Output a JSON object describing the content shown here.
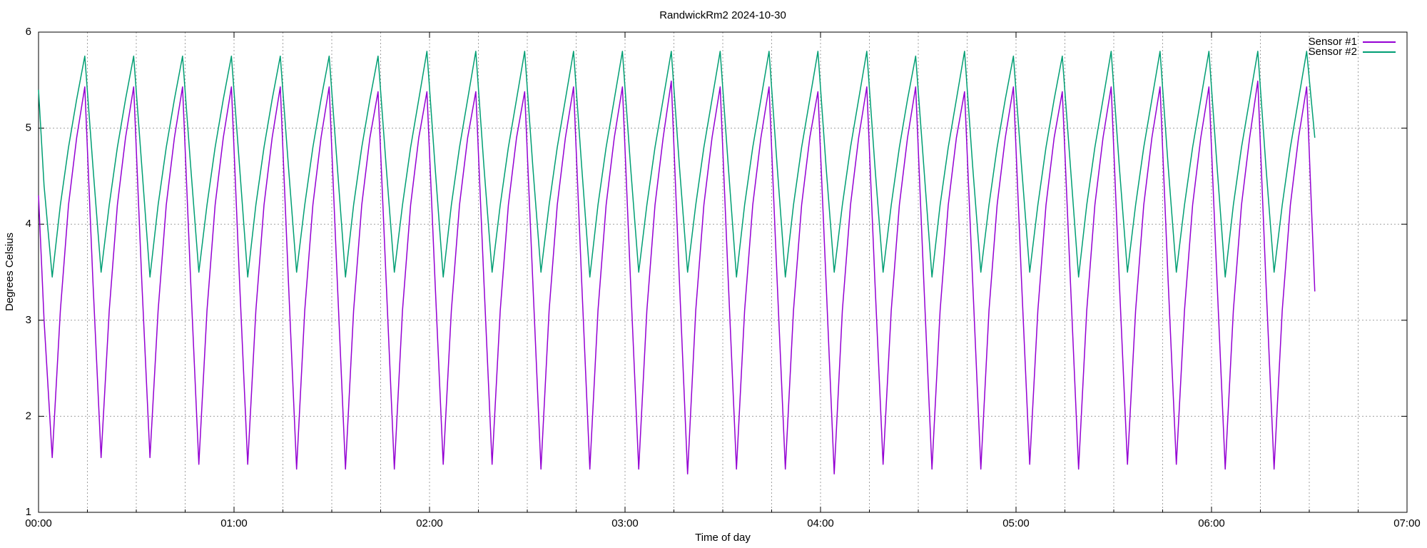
{
  "chart_data": {
    "type": "line",
    "title": "RandwickRm2 2024-10-30",
    "x_label": "Time of day",
    "y_label": "Degrees Celsius",
    "xlim": [
      0,
      420
    ],
    "ylim": [
      1,
      6
    ],
    "xticks": [
      {
        "value": 0,
        "label": "00:00"
      },
      {
        "value": 60,
        "label": "01:00"
      },
      {
        "value": 120,
        "label": "02:00"
      },
      {
        "value": 180,
        "label": "03:00"
      },
      {
        "value": 240,
        "label": "04:00"
      },
      {
        "value": 300,
        "label": "05:00"
      },
      {
        "value": 360,
        "label": "06:00"
      },
      {
        "value": 420,
        "label": "07:00"
      }
    ],
    "yticks": [
      1,
      2,
      3,
      4,
      5,
      6
    ],
    "grid": true,
    "minor_xticks_per_interval": 4,
    "legend": "top-right",
    "x": [
      0,
      1.7,
      4.2,
      6.7,
      9.2,
      11.7,
      14.2,
      16.7,
      19.2,
      21.7,
      24.2,
      26.7,
      29.2,
      31.7,
      34.2,
      36.7,
      39.2,
      41.7,
      44.2,
      46.7,
      49.2,
      51.7,
      54.2,
      56.7,
      59.2,
      61.7,
      64.2,
      66.7,
      69.2,
      71.7,
      74.2,
      76.7,
      79.2,
      81.7,
      84.2,
      86.7,
      89.2,
      91.7,
      94.2,
      96.7,
      99.2,
      101.7,
      104.2,
      106.7,
      109.2,
      111.7,
      114.2,
      116.7,
      119.2,
      121.7,
      124.2,
      126.7,
      129.2,
      131.7,
      134.2,
      136.7,
      139.2,
      141.7,
      144.2,
      146.7,
      149.2,
      151.7,
      154.2,
      156.7,
      159.2,
      161.7,
      164.2,
      166.7,
      169.2,
      171.7,
      174.2,
      176.7,
      179.2,
      181.7,
      184.2,
      186.7,
      189.2,
      191.7,
      194.2,
      196.7,
      199.2,
      201.7,
      204.2,
      206.7,
      209.2,
      211.7,
      214.2,
      216.7,
      219.2,
      221.7,
      224.2,
      226.7,
      229.2,
      231.7,
      234.2,
      236.7,
      239.2,
      241.7,
      244.2,
      246.7,
      249.2,
      251.7,
      254.2,
      256.7,
      259.2,
      261.7,
      264.2,
      266.7,
      269.2,
      271.7,
      274.2,
      276.7,
      279.2,
      281.7,
      284.2,
      286.7,
      289.2,
      291.7,
      294.2,
      296.7,
      299.2,
      301.7,
      304.2,
      306.7,
      309.2,
      311.7,
      314.2,
      316.7,
      319.2,
      321.7,
      324.2,
      326.7,
      329.2,
      331.7,
      334.2,
      336.7,
      339.2,
      341.7,
      344.2,
      346.7,
      349.2,
      351.7,
      354.2,
      356.7,
      359.2,
      361.7,
      364.2,
      366.7,
      369.2,
      371.7,
      374.2,
      376.7,
      379.2,
      381.7,
      384.2,
      386.7,
      389.2,
      391.7
    ],
    "series": [
      {
        "name": "Sensor #1",
        "color": "#9400d3",
        "values": [
          4.3,
          3.0,
          1.57,
          3.1,
          4.2,
          4.9,
          5.43,
          3.4,
          1.57,
          3.1,
          4.2,
          4.9,
          5.43,
          3.4,
          1.57,
          3.1,
          4.2,
          4.9,
          5.43,
          3.4,
          1.5,
          3.1,
          4.2,
          4.9,
          5.43,
          3.4,
          1.5,
          3.1,
          4.2,
          4.9,
          5.43,
          3.4,
          1.45,
          3.1,
          4.2,
          4.9,
          5.43,
          3.4,
          1.45,
          3.1,
          4.2,
          4.9,
          5.38,
          3.4,
          1.45,
          3.1,
          4.2,
          4.9,
          5.38,
          3.4,
          1.5,
          3.1,
          4.2,
          4.9,
          5.38,
          3.4,
          1.5,
          3.1,
          4.2,
          4.9,
          5.38,
          3.4,
          1.45,
          3.1,
          4.2,
          4.9,
          5.43,
          3.4,
          1.45,
          3.1,
          4.2,
          4.9,
          5.43,
          3.4,
          1.45,
          3.1,
          4.2,
          4.9,
          5.49,
          3.4,
          1.4,
          3.1,
          4.2,
          4.9,
          5.43,
          3.4,
          1.45,
          3.1,
          4.2,
          4.9,
          5.43,
          3.4,
          1.45,
          3.1,
          4.2,
          4.9,
          5.38,
          3.4,
          1.4,
          3.1,
          4.2,
          4.9,
          5.43,
          3.4,
          1.5,
          3.1,
          4.2,
          4.9,
          5.43,
          3.4,
          1.45,
          3.1,
          4.2,
          4.9,
          5.38,
          3.4,
          1.45,
          3.1,
          4.2,
          4.9,
          5.43,
          3.4,
          1.5,
          3.1,
          4.2,
          4.9,
          5.38,
          3.4,
          1.45,
          3.1,
          4.2,
          4.9,
          5.43,
          3.4,
          1.5,
          3.1,
          4.2,
          4.9,
          5.43,
          3.4,
          1.5,
          3.1,
          4.2,
          4.9,
          5.43,
          3.4,
          1.45,
          3.1,
          4.2,
          4.9,
          5.49,
          3.4,
          1.45,
          3.1,
          4.2,
          4.9,
          5.43,
          3.3
        ]
      },
      {
        "name": "Sensor #2",
        "color": "#009e73",
        "values": [
          5.4,
          4.4,
          3.45,
          4.2,
          4.8,
          5.3,
          5.75,
          4.6,
          3.5,
          4.2,
          4.8,
          5.3,
          5.75,
          4.6,
          3.45,
          4.2,
          4.8,
          5.3,
          5.75,
          4.6,
          3.5,
          4.2,
          4.8,
          5.3,
          5.75,
          4.6,
          3.45,
          4.2,
          4.8,
          5.3,
          5.75,
          4.6,
          3.5,
          4.2,
          4.8,
          5.3,
          5.75,
          4.6,
          3.45,
          4.2,
          4.8,
          5.3,
          5.75,
          4.6,
          3.5,
          4.2,
          4.8,
          5.3,
          5.8,
          4.6,
          3.45,
          4.2,
          4.8,
          5.3,
          5.8,
          4.6,
          3.5,
          4.2,
          4.8,
          5.3,
          5.8,
          4.6,
          3.5,
          4.2,
          4.8,
          5.3,
          5.8,
          4.6,
          3.45,
          4.2,
          4.8,
          5.3,
          5.8,
          4.6,
          3.5,
          4.2,
          4.8,
          5.3,
          5.8,
          4.6,
          3.5,
          4.2,
          4.8,
          5.3,
          5.8,
          4.6,
          3.45,
          4.2,
          4.8,
          5.3,
          5.8,
          4.6,
          3.45,
          4.2,
          4.8,
          5.3,
          5.8,
          4.6,
          3.5,
          4.2,
          4.8,
          5.3,
          5.8,
          4.6,
          3.5,
          4.2,
          4.8,
          5.3,
          5.75,
          4.6,
          3.45,
          4.2,
          4.8,
          5.3,
          5.8,
          4.6,
          3.5,
          4.2,
          4.8,
          5.3,
          5.75,
          4.6,
          3.5,
          4.2,
          4.8,
          5.3,
          5.75,
          4.6,
          3.45,
          4.2,
          4.8,
          5.3,
          5.8,
          4.6,
          3.5,
          4.2,
          4.8,
          5.3,
          5.8,
          4.6,
          3.5,
          4.2,
          4.8,
          5.3,
          5.8,
          4.6,
          3.45,
          4.2,
          4.8,
          5.3,
          5.8,
          4.6,
          3.5,
          4.2,
          4.8,
          5.3,
          5.8,
          4.9
        ]
      }
    ]
  }
}
